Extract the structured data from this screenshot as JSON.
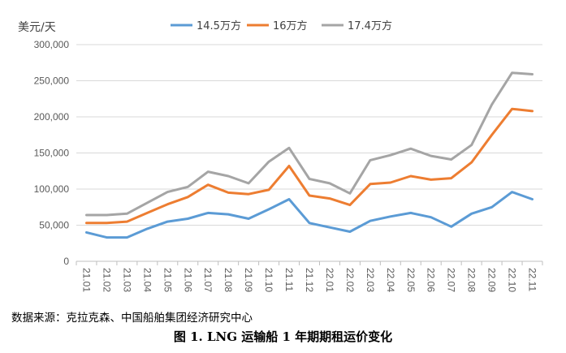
{
  "chart_data": {
    "type": "line",
    "ylabel": "美元/天",
    "ylim": [
      0,
      300000
    ],
    "yticks": [
      "0",
      "50,000",
      "100,000",
      "150,000",
      "200,000",
      "250,000",
      "300,000"
    ],
    "categories": [
      "21.01",
      "21.02",
      "21.03",
      "21.04",
      "21.05",
      "21.06",
      "21.07",
      "21.08",
      "21.09",
      "21.10",
      "21.11",
      "21.12",
      "22.01",
      "22.02",
      "22.03",
      "22.04",
      "22.05",
      "22.06",
      "22.07",
      "22.08",
      "22.09",
      "22.10",
      "22.11"
    ],
    "legend_position": "top",
    "grid": true,
    "series": [
      {
        "name": "14.5万方",
        "color": "#5B9BD5",
        "values": [
          40000,
          33000,
          33000,
          45000,
          55000,
          59000,
          67000,
          65000,
          59000,
          72000,
          86000,
          53000,
          47000,
          41000,
          56000,
          62000,
          67000,
          61000,
          48000,
          66000,
          75000,
          96000,
          86000
        ]
      },
      {
        "name": "16万方",
        "color": "#ED7D31",
        "values": [
          53000,
          53000,
          55000,
          67000,
          79000,
          89000,
          106000,
          95000,
          93000,
          99000,
          132000,
          91000,
          87000,
          78000,
          107000,
          109000,
          118000,
          113000,
          115000,
          137000,
          175000,
          211000,
          208000
        ]
      },
      {
        "name": "17.4万方",
        "color": "#A5A5A5",
        "values": [
          64000,
          64000,
          66000,
          81000,
          96000,
          103000,
          124000,
          118000,
          108000,
          138000,
          157000,
          114000,
          108000,
          94000,
          140000,
          147000,
          156000,
          146000,
          141000,
          161000,
          217000,
          261000,
          259000
        ]
      }
    ]
  },
  "source": "数据来源：克拉克森、中国船舶集团经济研究中心",
  "caption": "图 1. LNG 运输船 1 年期期租运价变化"
}
